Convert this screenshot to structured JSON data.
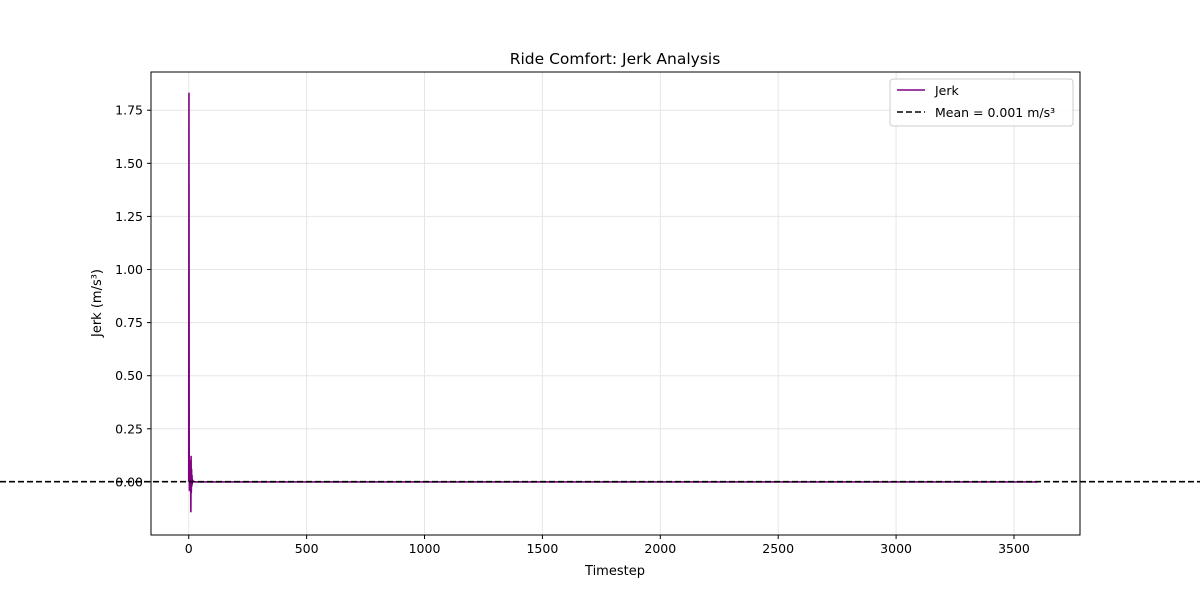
{
  "chart_data": {
    "type": "line",
    "title": "Ride Comfort: Jerk Analysis",
    "xlabel": "Timestep",
    "ylabel": "Jerk (m/s³)",
    "xlim": [
      -160,
      3780
    ],
    "ylim": [
      -0.25,
      1.93
    ],
    "xticks": [
      0,
      500,
      1000,
      1500,
      2000,
      2500,
      3000,
      3500
    ],
    "yticks": [
      0.0,
      0.25,
      0.5,
      0.75,
      1.0,
      1.25,
      1.5,
      1.75
    ],
    "xtick_labels": [
      "0",
      "500",
      "1000",
      "1500",
      "2000",
      "2500",
      "3000",
      "3500"
    ],
    "ytick_labels": [
      "0.00",
      "0.25",
      "0.50",
      "0.75",
      "1.00",
      "1.25",
      "1.50",
      "1.75"
    ],
    "grid": true,
    "legend_position": "top-right",
    "series": [
      {
        "name": "Jerk",
        "color": "#800080",
        "style": "solid",
        "x": [
          0,
          1,
          2,
          3,
          4,
          5,
          6,
          7,
          8,
          9,
          10,
          11,
          12,
          13,
          14,
          15,
          16,
          17,
          18,
          20,
          25,
          30,
          40,
          60,
          100,
          500,
          1000,
          1500,
          2000,
          2500,
          3000,
          3500,
          3600
        ],
        "y": [
          0.0,
          1.83,
          0.1,
          -0.04,
          0.1,
          -0.03,
          0.09,
          -0.04,
          0.1,
          -0.14,
          0.12,
          -0.05,
          0.06,
          -0.02,
          0.03,
          -0.01,
          0.01,
          0.0,
          0.005,
          0.002,
          0.001,
          0.0,
          0.0,
          0.0,
          0.0,
          0.0,
          0.0,
          0.0,
          0.0,
          0.0,
          0.0,
          0.0,
          0.0
        ]
      }
    ],
    "mean_line": {
      "name": "Mean = 0.001 m/s³",
      "value": 0.001,
      "color": "#000000",
      "style": "dashed"
    }
  }
}
